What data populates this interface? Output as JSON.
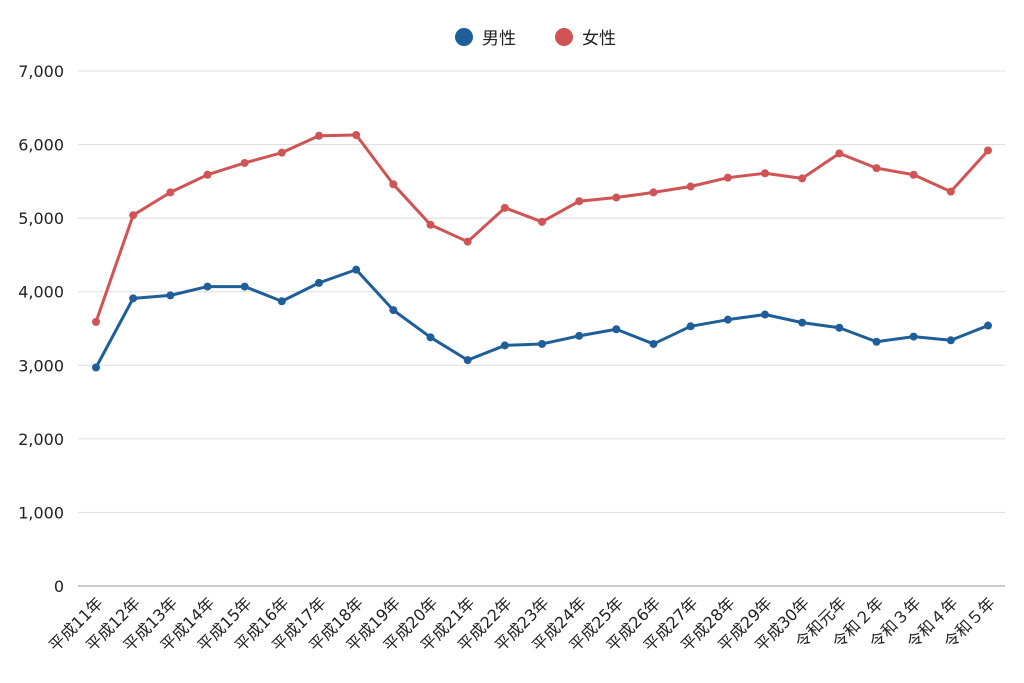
{
  "chart_data": {
    "type": "line",
    "categories": [
      "平成11年",
      "平成12年",
      "平成13年",
      "平成14年",
      "平成15年",
      "平成16年",
      "平成17年",
      "平成18年",
      "平成19年",
      "平成20年",
      "平成21年",
      "平成22年",
      "平成23年",
      "平成24年",
      "平成25年",
      "平成26年",
      "平成27年",
      "平成28年",
      "平成29年",
      "平成30年",
      "令和元年",
      "令和２年",
      "令和３年",
      "令和４年",
      "令和５年"
    ],
    "series": [
      {
        "name": "男性",
        "color": "#1f5f99",
        "values": [
          2970,
          3910,
          3950,
          4070,
          4070,
          3870,
          4120,
          4300,
          3750,
          3380,
          3070,
          3270,
          3290,
          3400,
          3490,
          3290,
          3530,
          3620,
          3690,
          3580,
          3510,
          3320,
          3390,
          3340,
          3540
        ]
      },
      {
        "name": "女性",
        "color": "#d05454",
        "values": [
          3590,
          5040,
          5350,
          5590,
          5750,
          5890,
          6120,
          6130,
          5460,
          4910,
          4680,
          5140,
          4950,
          5230,
          5280,
          5350,
          5430,
          5550,
          5610,
          5540,
          5880,
          5680,
          5590,
          5360,
          5920
        ]
      }
    ],
    "y_ticks": [
      "0",
      "1,000",
      "2,000",
      "3,000",
      "4,000",
      "5,000",
      "6,000",
      "7,000"
    ],
    "ylim": [
      0,
      7000
    ],
    "legend_position": "top-center",
    "grid": true
  }
}
